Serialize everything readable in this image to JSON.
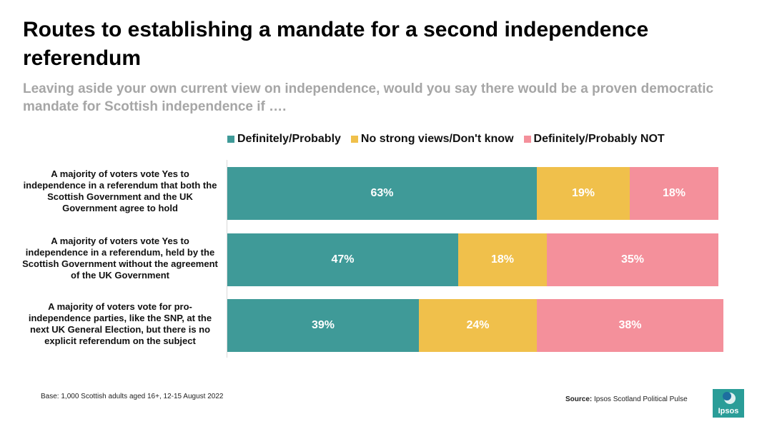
{
  "title": "Routes to establishing a mandate for a second independence referendum",
  "subtitle": "Leaving aside your own current view on independence, would you say there would be a proven democratic mandate for Scottish independence if ….",
  "footnote": "Base: 1,000 Scottish adults aged 16+, 12-15 August 2022",
  "source_label": "Source:",
  "source_text": "Ipsos Scotland Political Pulse",
  "logo_text": "Ipsos",
  "colors": {
    "teal": "#3f9a98",
    "yellow": "#f0c04b",
    "pink": "#f4909b"
  },
  "chart_data": {
    "type": "bar",
    "orientation": "horizontal",
    "stacked": true,
    "xlim": [
      0,
      100
    ],
    "unit": "%",
    "categories": [
      "A majority of voters vote Yes to independence in a referendum that both the Scottish Government and the UK Government agree to hold",
      "A majority of voters vote Yes to independence in a referendum, held by the Scottish Government without the agreement of the UK Government",
      "A majority of voters vote for pro-independence parties, like the SNP, at the next UK General Election, but there is no explicit referendum on the subject"
    ],
    "series": [
      {
        "name": "Definitely/Probably",
        "color": "#3f9a98",
        "values": [
          63,
          47,
          39
        ],
        "labels": [
          "63%",
          "47%",
          "39%"
        ]
      },
      {
        "name": "No strong views/Don't know",
        "color": "#f0c04b",
        "values": [
          19,
          18,
          24
        ],
        "labels": [
          "19%",
          "18%",
          "24%"
        ]
      },
      {
        "name": "Definitely/Probably NOT",
        "color": "#f4909b",
        "values": [
          18,
          35,
          38
        ],
        "labels": [
          "18%",
          "35%",
          "38%"
        ]
      }
    ],
    "legend_position": "top"
  }
}
